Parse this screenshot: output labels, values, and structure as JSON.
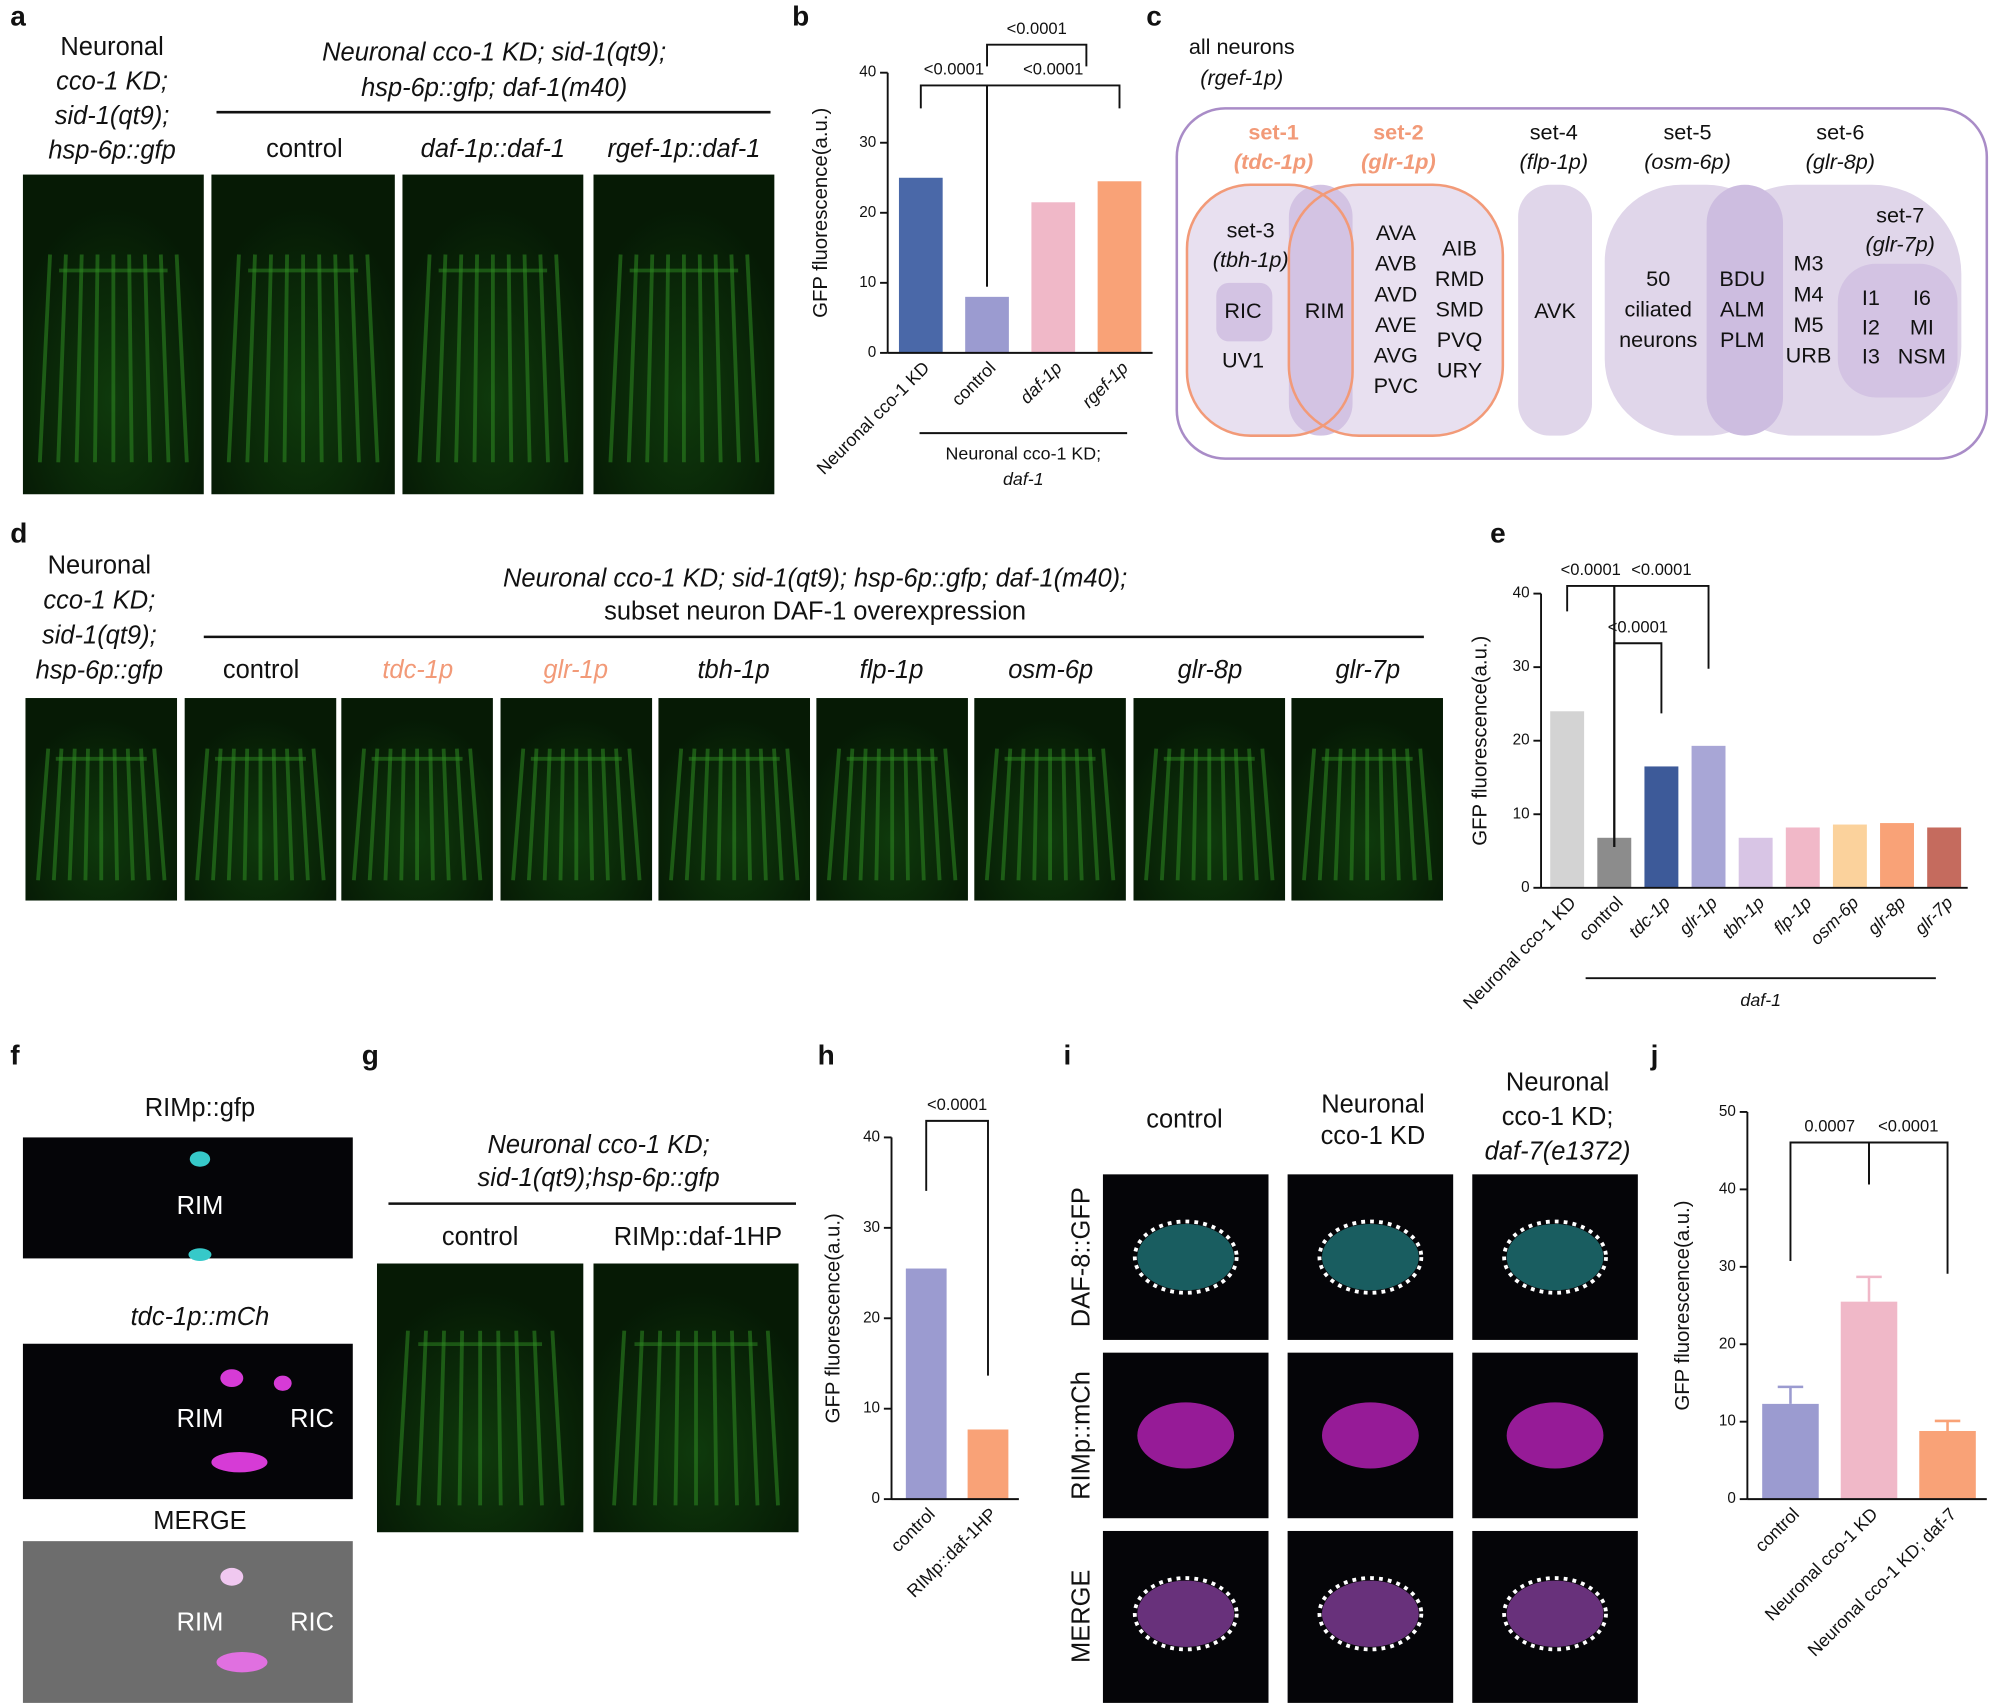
{
  "panel_labels": [
    "a",
    "b",
    "c",
    "d",
    "e",
    "f",
    "g",
    "h",
    "i",
    "j"
  ],
  "panel_a": {
    "row_label": [
      "Neuronal",
      "cco-1 KD;",
      "sid-1(qt9);",
      "hsp-6p::gfp"
    ],
    "header": [
      "Neuronal cco-1 KD; sid-1(qt9);",
      "hsp-6p::gfp; daf-1(m40)"
    ],
    "columns": [
      "control",
      "daf-1p::daf-1",
      "rgef-1p::daf-1"
    ]
  },
  "panel_c": {
    "title": [
      "all neurons",
      "(rgef-1p)"
    ],
    "sets": [
      {
        "name": "set-1",
        "promoter": "(tdc-1p)"
      },
      {
        "name": "set-2",
        "promoter": "(glr-1p)"
      },
      {
        "name": "set-3",
        "promoter": "(tbh-1p)"
      },
      {
        "name": "set-4",
        "promoter": "(flp-1p)"
      },
      {
        "name": "set-5",
        "promoter": "(osm-6p)"
      },
      {
        "name": "set-6",
        "promoter": "(glr-8p)"
      },
      {
        "name": "set-7",
        "promoter": "(glr-7p)"
      }
    ],
    "neurons": [
      [
        "RIC"
      ],
      [
        "UV1"
      ],
      [
        "RIM"
      ],
      [
        "AVA",
        "AVB",
        "AVD",
        "AVE",
        "AVG",
        "PVC"
      ],
      [
        "AIB",
        "RMD",
        "SMD",
        "PVQ",
        "URY"
      ],
      [
        "AVK"
      ],
      [
        "50",
        "ciliated",
        "neurons"
      ],
      [
        "BDU",
        "ALM",
        "PLM"
      ],
      [
        "M3",
        "M4",
        "M5",
        "URB"
      ],
      [
        "I1",
        "I2",
        "I3"
      ],
      [
        "I6",
        "MI",
        "NSM"
      ]
    ]
  },
  "panel_d": {
    "row_label": [
      "Neuronal",
      "cco-1 KD;",
      "sid-1(qt9);",
      "hsp-6p::gfp"
    ],
    "header": [
      "Neuronal cco-1 KD; sid-1(qt9); hsp-6p::gfp; daf-1(m40);",
      "subset neuron DAF-1 overexpression"
    ],
    "columns": [
      "control",
      "tdc-1p",
      "glr-1p",
      "tbh-1p",
      "flp-1p",
      "osm-6p",
      "glr-8p",
      "glr-7p"
    ]
  },
  "panel_f": {
    "titles": [
      "RIMp::gfp",
      "tdc-1p::mCh",
      "MERGE"
    ],
    "labels": [
      "RIM",
      "RIM",
      "RIC",
      "RIM",
      "RIC"
    ]
  },
  "panel_g": {
    "header": [
      "Neuronal cco-1 KD;",
      "sid-1(qt9);hsp-6p::gfp"
    ],
    "columns": [
      "control",
      "RIMp::daf-1HP"
    ]
  },
  "panel_i": {
    "columns": [
      [
        "control"
      ],
      [
        "Neuronal",
        "cco-1 KD"
      ],
      [
        "Neuronal",
        "cco-1 KD;",
        "daf-7(e1372)"
      ]
    ],
    "rows": [
      "DAF-8::GFP",
      "RIMp::mCh",
      "MERGE"
    ]
  },
  "chart_data": [
    {
      "type": "bar",
      "categories": [
        "Neuronal cco-1 KD",
        "control",
        "daf-1p",
        "rgef-1p"
      ],
      "values": [
        25,
        8,
        21.5,
        24.5
      ],
      "colors": [
        "#4a68a8",
        "#9b9bd0",
        "#f0b8c8",
        "#f9a277"
      ],
      "ylabel": "GFP fluorescence(a.u.)",
      "ylim": [
        0,
        40
      ],
      "yticks": [
        0,
        10,
        20,
        30,
        40
      ],
      "group_label": [
        "Neuronal cco-1 KD;",
        "daf-1"
      ],
      "annotations": [
        "<0.0001",
        "<0.0001",
        "<0.0001"
      ]
    },
    {
      "type": "bar",
      "categories": [
        "Neuronal cco-1 KD",
        "control",
        "tdc-1p",
        "glr-1p",
        "tbh-1p",
        "flp-1p",
        "osm-6p",
        "glr-8p",
        "glr-7p"
      ],
      "values": [
        24,
        6.8,
        16.5,
        19.3,
        6.8,
        8.2,
        8.6,
        8.8,
        8.2
      ],
      "colors": [
        "#d3d3d3",
        "#8c8c8c",
        "#3d5a99",
        "#a8a6d6",
        "#d8c5e5",
        "#f1b8c8",
        "#fbd29c",
        "#f9a277",
        "#c56b5e"
      ],
      "ylabel": "GFP fluorescence(a.u.)",
      "ylim": [
        0,
        40
      ],
      "yticks": [
        0,
        10,
        20,
        30,
        40
      ],
      "group_label": [
        "daf-1"
      ],
      "annotations": [
        "<0.0001",
        "<0.0001",
        "<0.0001"
      ]
    },
    {
      "type": "bar",
      "categories": [
        "control",
        "RIMp::daf-1HP"
      ],
      "values": [
        25.5,
        7.7
      ],
      "colors": [
        "#9b9bd0",
        "#f9a277"
      ],
      "ylabel": "GFP fluorescence(a.u.)",
      "ylim": [
        0,
        40
      ],
      "yticks": [
        0,
        10,
        20,
        30,
        40
      ],
      "annotations": [
        "<0.0001"
      ]
    },
    {
      "type": "bar",
      "categories": [
        "control",
        "Neuronal cco-1 KD",
        "Neuronal cco-1 KD; daf-7"
      ],
      "values": [
        12.3,
        25.5,
        8.8
      ],
      "errors": [
        2.2,
        3.2,
        1.3
      ],
      "colors": [
        "#9b9bd0",
        "#f0b8c8",
        "#f9a277"
      ],
      "ylabel": "GFP fluorescence(a.u.)",
      "ylim": [
        0,
        50
      ],
      "yticks": [
        0,
        10,
        20,
        30,
        40,
        50
      ],
      "annotations": [
        "0.0007",
        "<0.0001"
      ]
    }
  ]
}
